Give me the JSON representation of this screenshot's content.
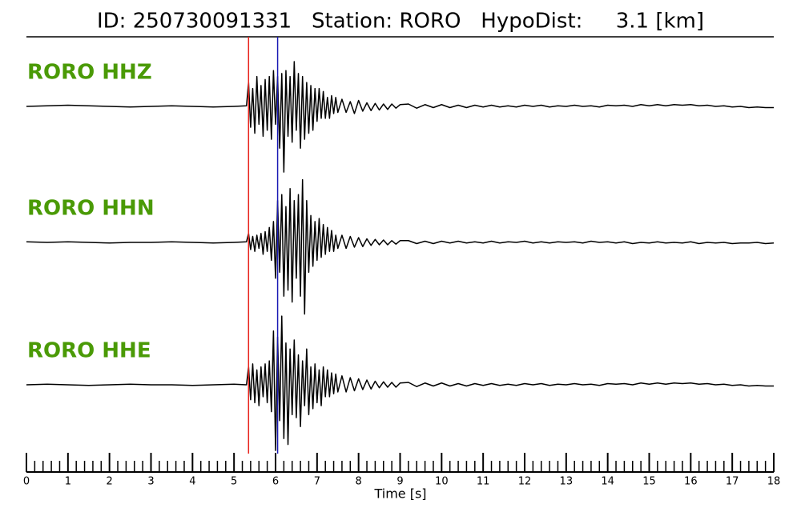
{
  "chart_data": {
    "type": "seismogram",
    "title": "ID: 250730091331   Station: RORO   HypoDist:     3.1 [km]",
    "xlabel": "Time [s]",
    "xlim": [
      0,
      18
    ],
    "xticks": [
      0,
      1,
      2,
      3,
      4,
      5,
      6,
      7,
      8,
      9,
      10,
      11,
      12,
      13,
      14,
      15,
      16,
      17,
      18
    ],
    "xminorticks": [
      0.2,
      0.4,
      0.6,
      0.8,
      1.2,
      1.4,
      1.6,
      1.8,
      2.2,
      2.4,
      2.6,
      2.8,
      3.2,
      3.4,
      3.6,
      3.8,
      4.2,
      4.4,
      4.6,
      4.8,
      5.2,
      5.4,
      5.6,
      5.8,
      6.2,
      6.4,
      6.6,
      6.8,
      7.2,
      7.4,
      7.6,
      7.8,
      8.2,
      8.4,
      8.6,
      8.8,
      9.2,
      9.4,
      9.6,
      9.8,
      10.2,
      10.4,
      10.6,
      10.8,
      11.2,
      11.4,
      11.6,
      11.8,
      12.2,
      12.4,
      12.6,
      12.8,
      13.2,
      13.4,
      13.6,
      13.8,
      14.2,
      14.4,
      14.6,
      14.8,
      15.2,
      15.4,
      15.6,
      15.8,
      16.2,
      16.4,
      16.6,
      16.8,
      17.2,
      17.4,
      17.6,
      17.8
    ],
    "ylim": [
      -1.5,
      1.5
    ],
    "label_color": "#4a9a06",
    "picks": [
      {
        "x": 5.35,
        "color": "#e8231c"
      },
      {
        "x": 6.05,
        "color": "#1a1ab4"
      }
    ],
    "x": [
      0,
      0.5,
      1,
      1.5,
      2,
      2.5,
      3,
      3.5,
      4,
      4.5,
      5,
      5.3,
      5.35,
      5.4,
      5.45,
      5.5,
      5.55,
      5.6,
      5.65,
      5.7,
      5.75,
      5.8,
      5.85,
      5.9,
      5.95,
      6,
      6.05,
      6.1,
      6.15,
      6.2,
      6.25,
      6.3,
      6.35,
      6.4,
      6.45,
      6.5,
      6.55,
      6.6,
      6.65,
      6.7,
      6.75,
      6.8,
      6.85,
      6.9,
      6.95,
      7,
      7.05,
      7.1,
      7.15,
      7.2,
      7.25,
      7.3,
      7.35,
      7.4,
      7.45,
      7.5,
      7.6,
      7.7,
      7.8,
      7.9,
      8,
      8.1,
      8.2,
      8.3,
      8.4,
      8.5,
      8.6,
      8.7,
      8.8,
      8.9,
      9,
      9.2,
      9.4,
      9.6,
      9.8,
      10,
      10.2,
      10.4,
      10.6,
      10.8,
      11,
      11.2,
      11.4,
      11.6,
      11.8,
      12,
      12.2,
      12.4,
      12.6,
      12.8,
      13,
      13.2,
      13.4,
      13.6,
      13.8,
      14,
      14.2,
      14.4,
      14.6,
      14.8,
      15,
      15.2,
      15.4,
      15.6,
      15.8,
      16,
      16.2,
      16.4,
      16.6,
      16.8,
      17,
      17.2,
      17.4,
      17.6,
      17.8,
      18
    ],
    "series": [
      {
        "name": "RORO HHZ",
        "color": "#000000",
        "values": [
          0,
          0.01,
          0.02,
          0.01,
          0,
          -0.01,
          0,
          0.01,
          0,
          -0.01,
          0,
          0.01,
          0.4,
          -0.35,
          0.3,
          -0.45,
          0.5,
          -0.3,
          0.35,
          -0.5,
          0.45,
          -0.4,
          0.5,
          -0.55,
          0.6,
          -0.3,
          0.5,
          -0.7,
          0.55,
          -1.1,
          0.6,
          -0.5,
          0.5,
          -0.6,
          0.75,
          -0.4,
          0.55,
          -0.7,
          0.5,
          -0.55,
          0.4,
          -0.45,
          0.35,
          -0.4,
          0.3,
          -0.25,
          0.3,
          -0.2,
          0.25,
          -0.2,
          0.15,
          -0.2,
          0.18,
          -0.12,
          0.15,
          -0.1,
          0.12,
          -0.1,
          0.08,
          -0.12,
          0.1,
          -0.08,
          0.06,
          -0.07,
          0.05,
          -0.06,
          0.04,
          -0.05,
          0.04,
          -0.03,
          0.03,
          0.04,
          -0.03,
          0.03,
          -0.02,
          0.03,
          -0.02,
          0.02,
          -0.02,
          0.02,
          -0.01,
          0.02,
          -0.01,
          0.01,
          -0.01,
          0.02,
          0,
          0.02,
          -0.01,
          0.01,
          0,
          0.02,
          0,
          0.01,
          -0.01,
          0.02,
          0.01,
          0.02,
          0,
          0.03,
          0.01,
          0.03,
          0.01,
          0.03,
          0.02,
          0.03,
          0.01,
          0.02,
          0,
          0.01,
          -0.01,
          0,
          -0.02,
          -0.01,
          -0.02,
          -0.02
        ]
      },
      {
        "name": "RORO HHN",
        "color": "#000000",
        "values": [
          0.01,
          0,
          0.01,
          0,
          -0.01,
          0,
          0,
          0.01,
          0,
          -0.01,
          0,
          0.01,
          0.15,
          -0.12,
          0.1,
          -0.15,
          0.12,
          -0.1,
          0.15,
          -0.2,
          0.18,
          -0.15,
          0.25,
          -0.3,
          0.35,
          -0.6,
          0.7,
          -0.5,
          0.8,
          -0.9,
          0.6,
          -0.8,
          0.9,
          -1.0,
          0.7,
          -0.6,
          0.8,
          -0.9,
          1.05,
          -1.2,
          0.7,
          -0.5,
          0.45,
          -0.4,
          0.35,
          -0.3,
          0.4,
          -0.25,
          0.3,
          -0.2,
          0.25,
          -0.15,
          0.2,
          -0.15,
          0.12,
          -0.1,
          0.12,
          -0.1,
          0.1,
          -0.08,
          0.08,
          -0.07,
          0.06,
          -0.05,
          0.05,
          -0.04,
          0.04,
          -0.04,
          0.03,
          -0.03,
          0.03,
          0.03,
          -0.02,
          0.02,
          -0.02,
          0.02,
          -0.01,
          0.02,
          -0.01,
          0.01,
          -0.01,
          0.02,
          -0.01,
          0.01,
          0,
          0.02,
          -0.01,
          0.01,
          -0.01,
          0.01,
          0,
          0.01,
          -0.01,
          0.02,
          0,
          0.01,
          -0.01,
          0.01,
          -0.02,
          0,
          -0.01,
          0.01,
          -0.01,
          0,
          -0.01,
          0.01,
          -0.02,
          0,
          -0.01,
          0,
          -0.02,
          -0.01,
          -0.01,
          0,
          -0.02,
          -0.01
        ]
      },
      {
        "name": "RORO HHE",
        "color": "#000000",
        "values": [
          0,
          0.01,
          0,
          -0.01,
          0,
          0.01,
          0,
          0,
          -0.01,
          0,
          0.01,
          0,
          0.3,
          -0.25,
          0.35,
          -0.3,
          0.25,
          -0.35,
          0.3,
          -0.2,
          0.35,
          -0.3,
          0.4,
          -0.45,
          0.9,
          -1.1,
          0.8,
          -0.6,
          1.15,
          -0.9,
          0.7,
          -1.0,
          0.6,
          -0.5,
          0.75,
          -0.55,
          0.5,
          -0.7,
          0.4,
          -0.35,
          0.6,
          -0.5,
          0.3,
          -0.4,
          0.35,
          -0.3,
          0.25,
          -0.35,
          0.3,
          -0.2,
          0.25,
          -0.2,
          0.2,
          -0.15,
          0.18,
          -0.12,
          0.15,
          -0.12,
          0.12,
          -0.1,
          0.1,
          -0.08,
          0.08,
          -0.07,
          0.06,
          -0.05,
          0.05,
          -0.04,
          0.04,
          -0.04,
          0.03,
          0.04,
          -0.03,
          0.03,
          -0.02,
          0.03,
          -0.02,
          0.02,
          -0.02,
          0.02,
          -0.01,
          0.02,
          -0.01,
          0.01,
          -0.01,
          0.02,
          0,
          0.02,
          -0.01,
          0.01,
          0,
          0.02,
          0,
          0.01,
          -0.01,
          0.02,
          0.01,
          0.02,
          0,
          0.03,
          0.01,
          0.03,
          0.01,
          0.03,
          0.02,
          0.03,
          0.01,
          0.02,
          0,
          0.01,
          -0.01,
          0,
          -0.02,
          -0.01,
          -0.02,
          -0.02
        ]
      }
    ]
  }
}
